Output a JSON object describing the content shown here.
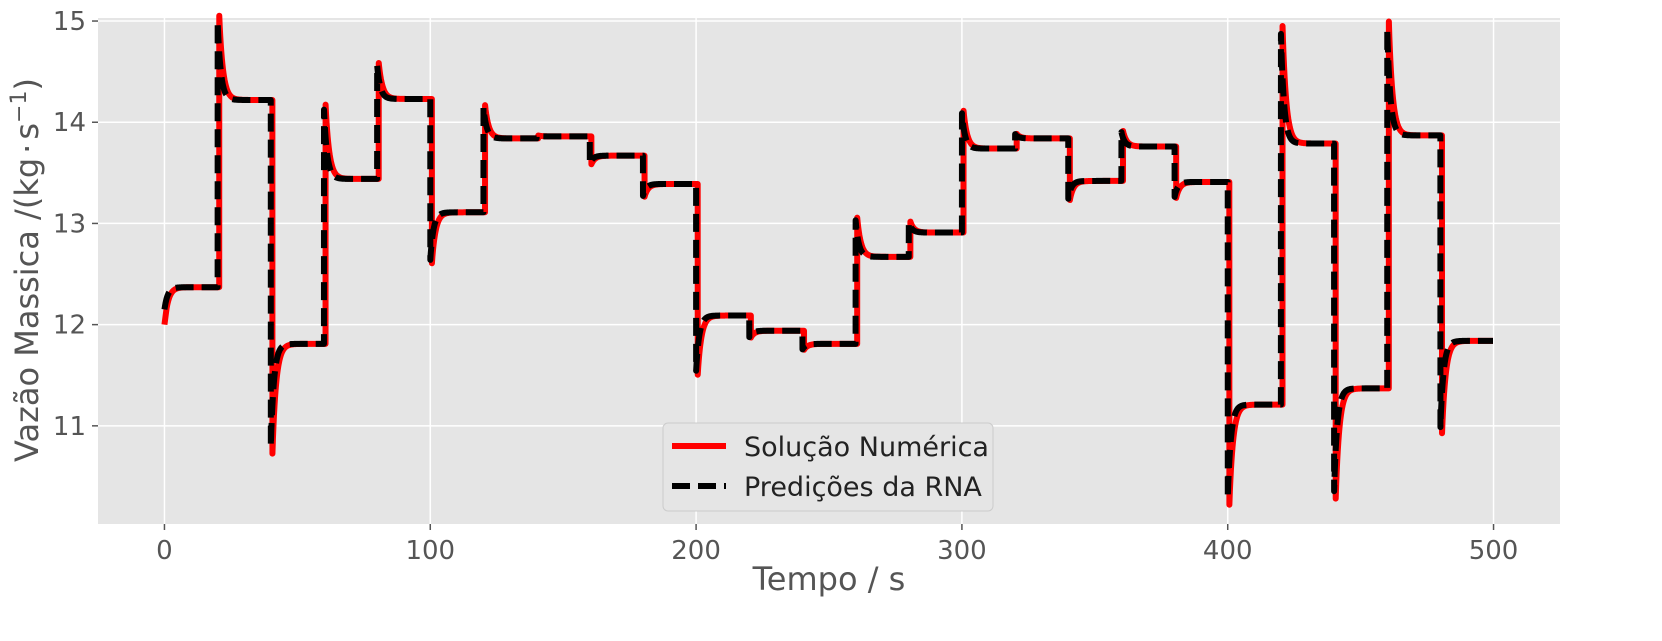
{
  "chart_data": {
    "type": "line",
    "title": "",
    "xlabel": "Tempo / s",
    "ylabel_main": "Vazão Massica /(kg",
    "ylabel_dot": "·",
    "ylabel_unit": "s",
    "ylabel_exp": "−1",
    "ylabel_close": ")",
    "xlim": [
      -25,
      525
    ],
    "ylim": [
      10.03,
      15.03
    ],
    "xticks": [
      0,
      100,
      200,
      300,
      400,
      500
    ],
    "yticks": [
      11,
      12,
      13,
      14,
      15
    ],
    "grid": true,
    "legend_position": "bottom-center",
    "steps": [
      {
        "t": 0,
        "y": 12.37
      },
      {
        "t": 20,
        "y": 14.22
      },
      {
        "t": 40,
        "y": 11.81
      },
      {
        "t": 60,
        "y": 13.44
      },
      {
        "t": 80,
        "y": 14.23
      },
      {
        "t": 100,
        "y": 13.11
      },
      {
        "t": 120,
        "y": 13.84
      },
      {
        "t": 140,
        "y": 13.86
      },
      {
        "t": 160,
        "y": 13.67
      },
      {
        "t": 180,
        "y": 13.39
      },
      {
        "t": 200,
        "y": 12.09
      },
      {
        "t": 220,
        "y": 11.94
      },
      {
        "t": 240,
        "y": 11.81
      },
      {
        "t": 260,
        "y": 12.67
      },
      {
        "t": 280,
        "y": 12.91
      },
      {
        "t": 300,
        "y": 13.74
      },
      {
        "t": 320,
        "y": 13.84
      },
      {
        "t": 340,
        "y": 13.42
      },
      {
        "t": 360,
        "y": 13.76
      },
      {
        "t": 380,
        "y": 13.41
      },
      {
        "t": 400,
        "y": 11.21
      },
      {
        "t": 420,
        "y": 13.79
      },
      {
        "t": 440,
        "y": 11.37
      },
      {
        "t": 460,
        "y": 13.87
      },
      {
        "t": 480,
        "y": 11.84
      }
    ],
    "end_time": 500,
    "start_value": 12.0,
    "series": [
      {
        "name": "Solução Numérica",
        "color": "#ff0000",
        "style": "solid",
        "start_value": 12.0,
        "overshoot": 0.45,
        "delay": 0.6,
        "tau": 1.4
      },
      {
        "name": "Predições da RNA",
        "color": "#000000",
        "style": "dashed",
        "start_value": 12.15,
        "overshoot": 0.42,
        "delay": 0.0,
        "tau": 1.2
      }
    ]
  }
}
